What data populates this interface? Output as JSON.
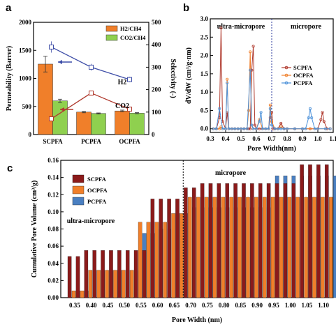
{
  "chart_data": [
    {
      "panel": "a",
      "type": "bar",
      "categories": [
        "SCPFA",
        "PCPFA",
        "OCPFA"
      ],
      "ylabel": "Permeability (Barrer)",
      "y2label": "Selectivity (-)",
      "ylim": [
        0,
        2000
      ],
      "y2lim": [
        0,
        500
      ],
      "yticks": [
        "0",
        "500",
        "1000",
        "1500",
        "2000"
      ],
      "y2ticks": [
        "0",
        "100",
        "200",
        "300",
        "400",
        "500"
      ],
      "bar_series": [
        {
          "name": "H2/CH4",
          "color": "#f07f2a",
          "values": [
            1255,
            400,
            420
          ],
          "errors": [
            140,
            12,
            15
          ]
        },
        {
          "name": "CO2/CH4",
          "color": "#8fd04f",
          "values": [
            600,
            375,
            380
          ],
          "errors": [
            30,
            10,
            10
          ]
        }
      ],
      "line_series": [
        {
          "name": "H2",
          "axis": "right",
          "color": "#3f4fa8",
          "values": [
            390,
            300,
            245
          ],
          "errors": [
            25,
            15,
            12
          ]
        },
        {
          "name": "CO2",
          "axis": "right",
          "color": "#b03a2e",
          "values": [
            70,
            185,
            113
          ],
          "errors": [
            5,
            5,
            5
          ]
        }
      ],
      "annotations": [
        "H2",
        "CO2"
      ]
    },
    {
      "panel": "b",
      "type": "line",
      "xlabel": "Pore Width(nm)",
      "ylabel": "dV/dW (cm³/g·nm)",
      "xlim": [
        0.3,
        1.1
      ],
      "ylim": [
        -0.1,
        3.0
      ],
      "xticks": [
        "0.3",
        "0.4",
        "0.5",
        "0.6",
        "0.7",
        "0.8",
        "0.9",
        "1.0",
        "1.1"
      ],
      "yticks": [
        "0.0",
        "0.5",
        "1.0",
        "1.5",
        "2.0",
        "2.5",
        "3.0"
      ],
      "regions": [
        "ultra-micropore",
        "micropore"
      ],
      "divider_x": 0.7,
      "series": [
        {
          "name": "SCPFA",
          "color": "#b03a2e",
          "x": [
            0.32,
            0.34,
            0.36,
            0.37,
            0.38,
            0.4,
            0.41,
            0.42,
            0.44,
            0.46,
            0.48,
            0.5,
            0.52,
            0.54,
            0.55,
            0.56,
            0.57,
            0.58,
            0.59,
            0.6,
            0.62,
            0.64,
            0.66,
            0.68,
            0.69,
            0.7,
            0.71,
            0.72,
            0.74,
            0.76,
            0.78,
            0.8,
            0.85,
            0.9,
            0.95,
            1.0,
            1.02,
            1.03,
            1.04,
            1.06,
            1.08
          ],
          "y": [
            0,
            0,
            0.3,
            2.75,
            0.2,
            0,
            0.45,
            0,
            0,
            0,
            0,
            0,
            0,
            0,
            0,
            0,
            1.6,
            2.25,
            0.1,
            0,
            0,
            0,
            0,
            0,
            0.3,
            0.45,
            0,
            0,
            0,
            0.15,
            0,
            0,
            0,
            0,
            0,
            0,
            0.25,
            0.45,
            0.2,
            0,
            0
          ]
        },
        {
          "name": "OCPFA",
          "color": "#f07f2a",
          "x": [
            0.32,
            0.34,
            0.36,
            0.37,
            0.38,
            0.4,
            0.41,
            0.42,
            0.44,
            0.46,
            0.48,
            0.5,
            0.52,
            0.54,
            0.55,
            0.56,
            0.57,
            0.58,
            0.6,
            0.62,
            0.64,
            0.66,
            0.68,
            0.69,
            0.7,
            0.72,
            0.74,
            0.76,
            0.78,
            0.8,
            0.85,
            0.9,
            0.95,
            1.0,
            1.05,
            1.08
          ],
          "y": [
            0,
            0,
            0,
            0.05,
            0,
            0,
            1.35,
            0,
            0,
            0,
            0,
            0,
            0,
            0,
            0.5,
            2.1,
            0.1,
            0,
            0,
            0.25,
            0,
            0,
            0,
            0.65,
            0.2,
            0,
            0,
            0.05,
            0,
            0,
            0,
            0,
            0,
            0,
            0,
            0
          ]
        },
        {
          "name": "PCPFA",
          "color": "#4a90d9",
          "x": [
            0.32,
            0.34,
            0.36,
            0.38,
            0.4,
            0.41,
            0.42,
            0.44,
            0.46,
            0.48,
            0.5,
            0.52,
            0.54,
            0.56,
            0.57,
            0.58,
            0.6,
            0.62,
            0.63,
            0.64,
            0.66,
            0.68,
            0.69,
            0.7,
            0.72,
            0.74,
            0.76,
            0.78,
            0.8,
            0.85,
            0.9,
            0.92,
            0.94,
            0.95,
            0.96,
            0.98,
            1.0,
            1.05,
            1.08
          ],
          "y": [
            0,
            0,
            0.55,
            0,
            0,
            1.25,
            0,
            0,
            0,
            0,
            0,
            0,
            0,
            1.6,
            0.1,
            0,
            0,
            0.2,
            0.45,
            0,
            0,
            0,
            0.55,
            0.1,
            0,
            0,
            0,
            0,
            0,
            0,
            0,
            0,
            0.3,
            0.55,
            0.3,
            0,
            0,
            0,
            0
          ]
        }
      ]
    },
    {
      "panel": "c",
      "type": "bar",
      "xlabel": "Pore Width (nm)",
      "ylabel": "Cumulative Pore Volume (cm³/g)",
      "ylim": [
        0,
        0.16
      ],
      "yticks": [
        "0.00",
        "0.02",
        "0.04",
        "0.06",
        "0.08",
        "0.10",
        "0.12",
        "0.14",
        "0.16"
      ],
      "categories": [
        "0.35",
        "0.40",
        "0.45",
        "0.50",
        "0.55",
        "0.60",
        "0.65",
        "0.70",
        "0.75",
        "0.80",
        "0.85",
        "0.90",
        "0.95",
        "1.00",
        "1.05",
        "1.10"
      ],
      "regions": [
        "ultra-micropore",
        "micropore"
      ],
      "divider_x": 0.7,
      "series": [
        {
          "name": "SCPFA",
          "color": "#8b1a1a",
          "values": [
            0.048,
            0.055,
            0.055,
            0.055,
            0.055,
            0.115,
            0.115,
            0.128,
            0.133,
            0.133,
            0.133,
            0.133,
            0.133,
            0.133,
            0.155,
            0.155
          ]
        },
        {
          "name": "OCPFA",
          "color": "#f07f2a",
          "values": [
            0.008,
            0.032,
            0.032,
            0.032,
            0.088,
            0.088,
            0.098,
            0.117,
            0.117,
            0.117,
            0.117,
            0.117,
            0.117,
            0.117,
            0.117,
            0.117
          ]
        },
        {
          "name": "PCPFA",
          "color": "#4a7fc1",
          "values": [
            0.008,
            0.032,
            0.032,
            0.032,
            0.075,
            0.08,
            0.098,
            0.105,
            0.105,
            0.105,
            0.105,
            0.105,
            0.142,
            0.142,
            0.142,
            0.142
          ]
        }
      ]
    }
  ],
  "labels": {
    "panel_a": "a",
    "panel_b": "b",
    "panel_c": "c"
  }
}
